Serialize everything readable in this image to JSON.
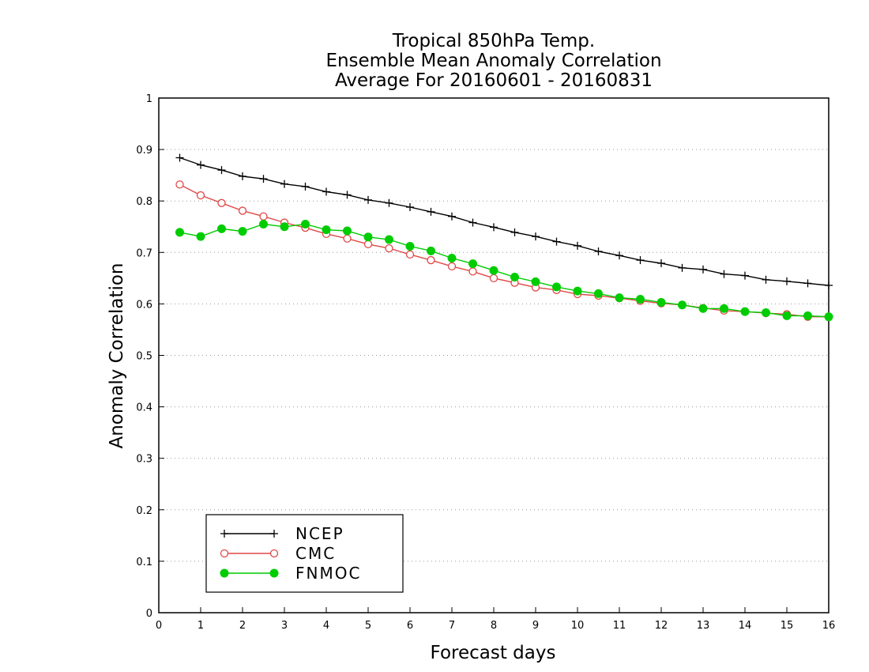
{
  "chart_data": {
    "type": "line",
    "title": [
      "Tropical 850hPa Temp.",
      "Ensemble Mean Anomaly Correlation",
      "Average For 20160601 - 20160831"
    ],
    "xlabel": "Forecast days",
    "ylabel": "Anomaly Correlation",
    "xlim": [
      0,
      16
    ],
    "ylim": [
      0,
      1
    ],
    "xticks": [
      "0",
      "1",
      "2",
      "3",
      "4",
      "5",
      "6",
      "7",
      "8",
      "9",
      "10",
      "11",
      "12",
      "13",
      "14",
      "15",
      "16"
    ],
    "yticks": [
      "0",
      "0.1",
      "0.2",
      "0.3",
      "0.4",
      "0.5",
      "0.6",
      "0.7",
      "0.8",
      "0.9",
      "1"
    ],
    "grid": "horizontal-dotted",
    "legend_position": "bottom-left",
    "x": [
      0.5,
      1,
      1.5,
      2,
      2.5,
      3,
      3.5,
      4,
      4.5,
      5,
      5.5,
      6,
      6.5,
      7,
      7.5,
      8,
      8.5,
      9,
      9.5,
      10,
      10.5,
      11,
      11.5,
      12,
      12.5,
      13,
      13.5,
      14,
      14.5,
      15,
      15.5,
      16
    ],
    "series": [
      {
        "name": "NCEP",
        "color": "#000000",
        "marker": "plus",
        "values": [
          0.884,
          0.87,
          0.86,
          0.848,
          0.843,
          0.833,
          0.828,
          0.818,
          0.812,
          0.802,
          0.796,
          0.788,
          0.779,
          0.77,
          0.758,
          0.749,
          0.739,
          0.731,
          0.721,
          0.713,
          0.702,
          0.694,
          0.685,
          0.679,
          0.67,
          0.667,
          0.658,
          0.655,
          0.647,
          0.644,
          0.64,
          0.636
        ]
      },
      {
        "name": "CMC",
        "color": "#e04848",
        "marker": "open-circle",
        "values": [
          0.832,
          0.811,
          0.796,
          0.781,
          0.77,
          0.758,
          0.748,
          0.736,
          0.727,
          0.716,
          0.708,
          0.696,
          0.685,
          0.673,
          0.663,
          0.65,
          0.641,
          0.632,
          0.627,
          0.619,
          0.616,
          0.611,
          0.606,
          0.601,
          0.598,
          0.592,
          0.587,
          0.585,
          0.582,
          0.58,
          0.575,
          0.575
        ]
      },
      {
        "name": "FNMOC",
        "color": "#00cc00",
        "marker": "filled-circle",
        "values": [
          0.739,
          0.731,
          0.746,
          0.741,
          0.755,
          0.75,
          0.755,
          0.744,
          0.742,
          0.73,
          0.725,
          0.712,
          0.703,
          0.689,
          0.678,
          0.665,
          0.652,
          0.643,
          0.633,
          0.625,
          0.62,
          0.612,
          0.609,
          0.603,
          0.598,
          0.591,
          0.591,
          0.585,
          0.583,
          0.577,
          0.577,
          0.575
        ]
      }
    ]
  }
}
